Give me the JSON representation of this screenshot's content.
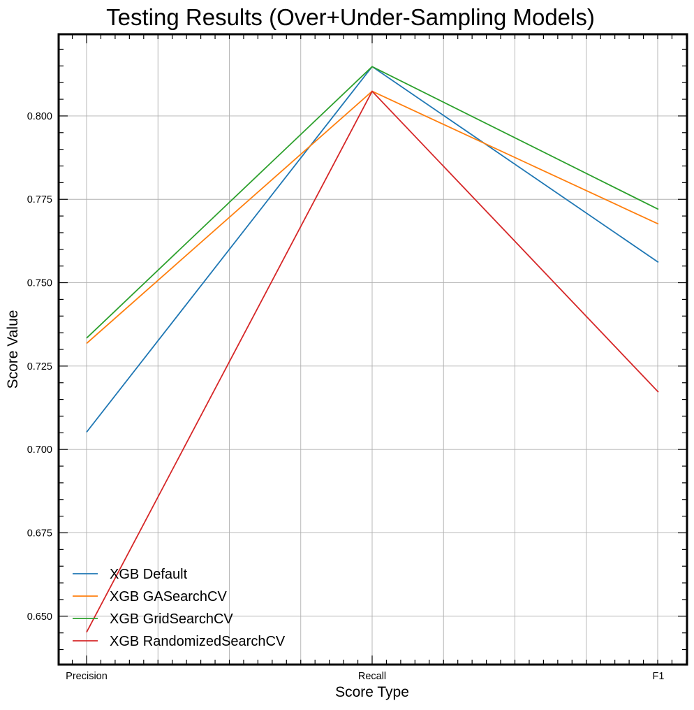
{
  "chart_data": {
    "type": "line",
    "title": "Testing Results (Over+Under-Sampling Models)",
    "xlabel": "Score Type",
    "ylabel": "Score Value",
    "categories": [
      "Precision",
      "Recall",
      "F1"
    ],
    "ylim": [
      0.6355,
      0.8245
    ],
    "yticks": [
      0.65,
      0.675,
      0.7,
      0.725,
      0.75,
      0.775,
      0.8
    ],
    "ytick_labels": [
      "0.650",
      "0.675",
      "0.700",
      "0.725",
      "0.750",
      "0.775",
      "0.800"
    ],
    "grid": true,
    "legend_position": "lower-left",
    "series": [
      {
        "name": "XGB Default",
        "color": "#1f77b4",
        "values": [
          0.7052,
          0.8148,
          0.7561
        ]
      },
      {
        "name": "XGB GASearchCV",
        "color": "#ff7f0e",
        "values": [
          0.7318,
          0.8074,
          0.7676
        ]
      },
      {
        "name": "XGB GridSearchCV",
        "color": "#2ca02c",
        "values": [
          0.7334,
          0.8148,
          0.772
        ]
      },
      {
        "name": "XGB RandomizedSearchCV",
        "color": "#d62728",
        "values": [
          0.6452,
          0.8074,
          0.7172
        ]
      }
    ]
  }
}
